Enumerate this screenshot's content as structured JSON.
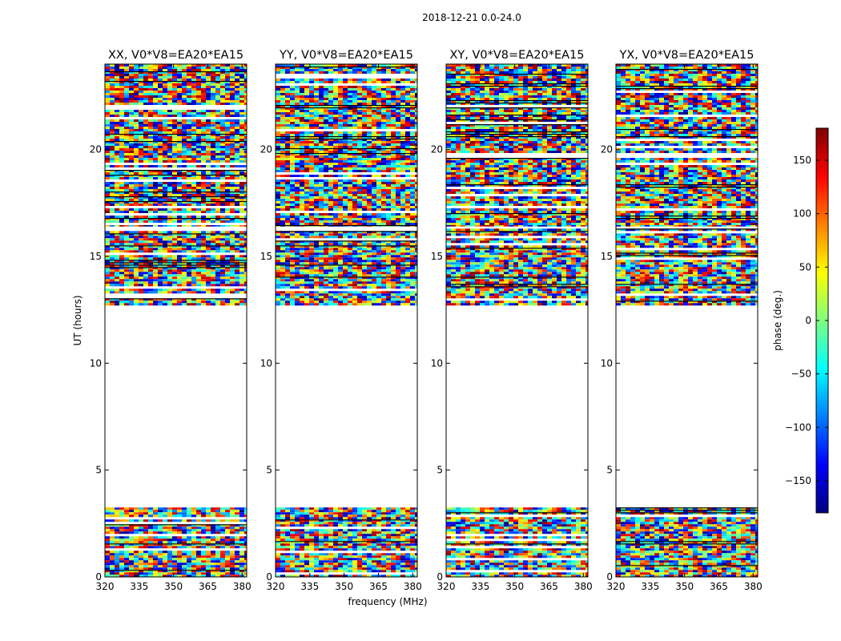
{
  "figure": {
    "suptitle": "2018-12-21 0.0-24.0",
    "xlabel": "frequency (MHz)",
    "ylabel": "UT (hours)"
  },
  "colorbar": {
    "label": "phase (deg.)",
    "range": [
      -180,
      180
    ],
    "ticks": [
      -150,
      -100,
      -50,
      0,
      50,
      100,
      150
    ],
    "tick_labels": [
      "−150",
      "−100",
      "−50",
      "0",
      "50",
      "100",
      "150"
    ],
    "colormap": "jet",
    "colors": [
      "#00007f",
      "#0000ff",
      "#007fff",
      "#00ffff",
      "#7fff7f",
      "#ffff00",
      "#ff7f00",
      "#ff0000",
      "#7f0000"
    ]
  },
  "chart_data": [
    {
      "type": "heatmap",
      "title": "XX, V0*V8=EA20*EA15",
      "xlabel": "frequency (MHz)",
      "ylabel": "UT (hours)",
      "xlim": [
        320,
        382
      ],
      "ylim": [
        0,
        24
      ],
      "xticks": [
        320,
        335,
        350,
        365,
        380
      ],
      "yticks": [
        0,
        5,
        10,
        15,
        20
      ],
      "value": "phase (deg.)",
      "data_intervals_hours": [
        [
          0,
          3.25
        ],
        [
          12.7,
          16.3
        ],
        [
          16.4,
          24
        ]
      ]
    },
    {
      "type": "heatmap",
      "title": "YY, V0*V8=EA20*EA15",
      "xlabel": "frequency (MHz)",
      "ylabel": "UT (hours)",
      "xlim": [
        320,
        382
      ],
      "ylim": [
        0,
        24
      ],
      "xticks": [
        320,
        335,
        350,
        365,
        380
      ],
      "yticks": [
        0,
        5,
        10,
        15,
        20
      ],
      "value": "phase (deg.)",
      "data_intervals_hours": [
        [
          0,
          3.25
        ],
        [
          12.7,
          16.3
        ],
        [
          16.4,
          24
        ]
      ]
    },
    {
      "type": "heatmap",
      "title": "XY, V0*V8=EA20*EA15",
      "xlabel": "frequency (MHz)",
      "ylabel": "UT (hours)",
      "xlim": [
        320,
        382
      ],
      "ylim": [
        0,
        24
      ],
      "xticks": [
        320,
        335,
        350,
        365,
        380
      ],
      "yticks": [
        0,
        5,
        10,
        15,
        20
      ],
      "value": "phase (deg.)",
      "data_intervals_hours": [
        [
          0,
          3.25
        ],
        [
          12.7,
          16.3
        ],
        [
          16.4,
          24
        ]
      ]
    },
    {
      "type": "heatmap",
      "title": "YX, V0*V8=EA20*EA15",
      "xlabel": "frequency (MHz)",
      "ylabel": "UT (hours)",
      "xlim": [
        320,
        382
      ],
      "ylim": [
        0,
        24
      ],
      "xticks": [
        320,
        335,
        350,
        365,
        380
      ],
      "yticks": [
        0,
        5,
        10,
        15,
        20
      ],
      "value": "phase (deg.)",
      "data_intervals_hours": [
        [
          0,
          3.25
        ],
        [
          12.7,
          16.3
        ],
        [
          16.4,
          24
        ]
      ]
    }
  ]
}
